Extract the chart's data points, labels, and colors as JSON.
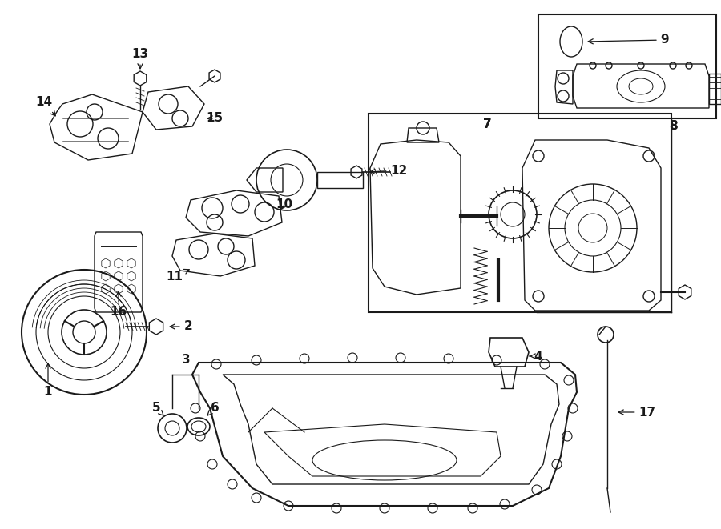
{
  "bg_color": "#ffffff",
  "line_color": "#1a1a1a",
  "fig_width": 9.0,
  "fig_height": 6.61,
  "dpi": 100,
  "lw": 1.0
}
